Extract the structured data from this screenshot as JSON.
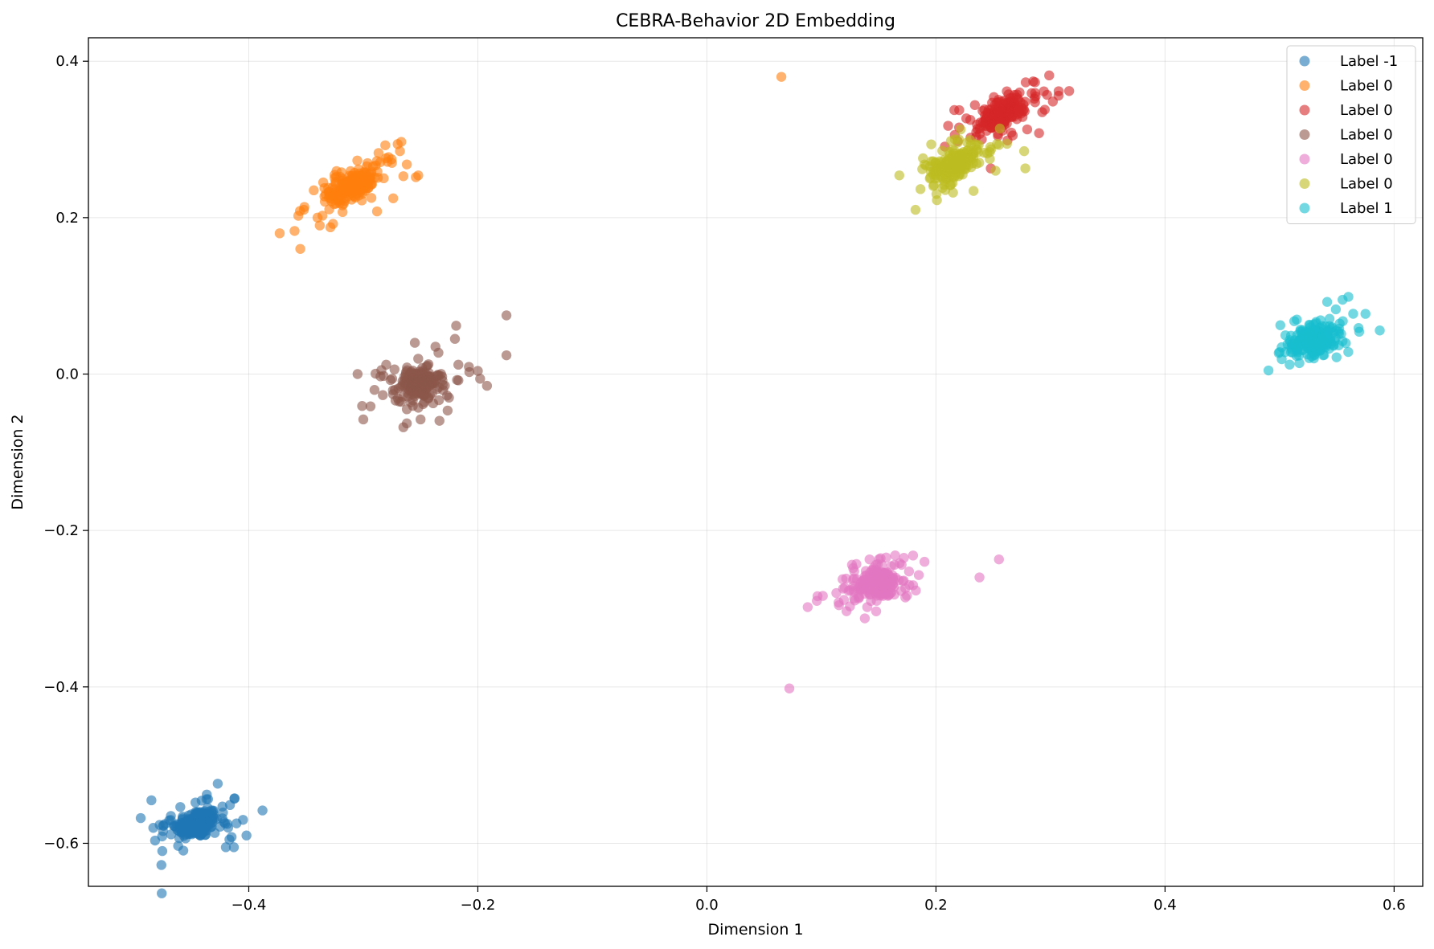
{
  "chart_data": {
    "type": "scatter",
    "title": "CEBRA-Behavior 2D Embedding",
    "xlabel": "Dimension 1",
    "ylabel": "Dimension 2",
    "xlim": [
      -0.54,
      0.625
    ],
    "ylim": [
      -0.655,
      0.43
    ],
    "xticks": [
      -0.4,
      -0.2,
      0.0,
      0.2,
      0.4,
      0.6
    ],
    "xtick_labels": [
      "−0.4",
      "−0.2",
      "0.0",
      "0.2",
      "0.4",
      "0.6"
    ],
    "yticks": [
      -0.6,
      -0.4,
      -0.2,
      0.0,
      0.2,
      0.4
    ],
    "ytick_labels": [
      "−0.6",
      "−0.4",
      "−0.2",
      "0.0",
      "0.2",
      "0.4"
    ],
    "grid": true,
    "legend_position": "top-right",
    "series": [
      {
        "name": "Label -1",
        "color": "#1f77b4",
        "center": [
          -0.445,
          -0.575
        ],
        "outliers": [
          [
            -0.485,
            -0.545
          ],
          [
            -0.468,
            -0.565
          ],
          [
            -0.388,
            -0.558
          ],
          [
            -0.405,
            -0.57
          ],
          [
            -0.402,
            -0.59
          ],
          [
            -0.42,
            -0.605
          ],
          [
            -0.413,
            -0.605
          ],
          [
            -0.415,
            -0.592
          ],
          [
            -0.423,
            -0.553
          ],
          [
            -0.418,
            -0.58
          ],
          [
            -0.465,
            -0.578
          ]
        ]
      },
      {
        "name": "Label 0",
        "color": "#ff7f0e",
        "center": [
          -0.31,
          0.24
        ],
        "outliers": [
          [
            -0.373,
            0.18
          ],
          [
            -0.36,
            0.183
          ],
          [
            -0.355,
            0.16
          ],
          [
            -0.34,
            0.2
          ],
          [
            -0.338,
            0.19
          ],
          [
            -0.27,
            0.294
          ],
          [
            -0.268,
            0.285
          ],
          [
            -0.262,
            0.268
          ],
          [
            -0.252,
            0.254
          ],
          [
            -0.288,
            0.208
          ],
          [
            -0.265,
            0.253
          ],
          [
            -0.275,
            0.27
          ],
          [
            -0.335,
            0.245
          ],
          [
            -0.32,
            0.252
          ]
        ]
      },
      {
        "name": "Label 0",
        "color": "#d62728",
        "center": [
          0.258,
          0.333
        ],
        "outliers": [
          [
            0.307,
            0.356
          ],
          [
            0.297,
            0.357
          ],
          [
            0.295,
            0.338
          ],
          [
            0.29,
            0.308
          ],
          [
            0.273,
            0.36
          ],
          [
            0.24,
            0.3
          ],
          [
            0.23,
            0.325
          ],
          [
            0.287,
            0.355
          ],
          [
            0.267,
            0.305
          ],
          [
            0.248,
            0.315
          ]
        ]
      },
      {
        "name": "Label 0",
        "color": "#8c564b",
        "center": [
          -0.252,
          -0.012
        ],
        "outliers": [
          [
            -0.175,
            0.075
          ],
          [
            -0.175,
            0.024
          ],
          [
            -0.3,
            -0.058
          ],
          [
            -0.305,
            0.0
          ],
          [
            -0.265,
            -0.068
          ],
          [
            -0.262,
            -0.063
          ],
          [
            -0.25,
            -0.058
          ],
          [
            -0.255,
            0.04
          ],
          [
            -0.237,
            0.035
          ],
          [
            -0.22,
            0.045
          ],
          [
            -0.192,
            -0.015
          ],
          [
            -0.2,
            0.004
          ],
          [
            -0.28,
            0.012
          ],
          [
            -0.285,
            -0.003
          ],
          [
            -0.262,
            -0.045
          ],
          [
            -0.217,
            0.012
          ],
          [
            -0.198,
            -0.006
          ]
        ]
      },
      {
        "name": "Label 0",
        "color": "#e377c2",
        "center": [
          0.15,
          -0.268
        ],
        "outliers": [
          [
            0.072,
            -0.402
          ],
          [
            0.088,
            -0.298
          ],
          [
            0.096,
            -0.29
          ],
          [
            0.115,
            -0.292
          ],
          [
            0.113,
            -0.28
          ],
          [
            0.255,
            -0.237
          ],
          [
            0.238,
            -0.26
          ],
          [
            0.19,
            -0.24
          ],
          [
            0.18,
            -0.232
          ],
          [
            0.172,
            -0.235
          ],
          [
            0.142,
            -0.237
          ],
          [
            0.14,
            -0.298
          ],
          [
            0.185,
            -0.257
          ],
          [
            0.18,
            -0.27
          ],
          [
            0.128,
            -0.275
          ]
        ]
      },
      {
        "name": "Label 0",
        "color": "#bcbd22",
        "center": [
          0.217,
          0.27
        ],
        "outliers": [
          [
            0.168,
            0.254
          ],
          [
            0.188,
            0.262
          ],
          [
            0.19,
            0.268
          ],
          [
            0.278,
            0.263
          ],
          [
            0.277,
            0.285
          ],
          [
            0.252,
            0.26
          ],
          [
            0.255,
            0.293
          ],
          [
            0.242,
            0.283
          ],
          [
            0.213,
            0.298
          ],
          [
            0.22,
            0.3
          ],
          [
            0.207,
            0.242
          ],
          [
            0.213,
            0.242
          ],
          [
            0.247,
            0.275
          ],
          [
            0.196,
            0.272
          ]
        ]
      },
      {
        "name": "Label 1",
        "color": "#17becf",
        "center": [
          0.53,
          0.043
        ],
        "outliers": [
          [
            0.555,
            0.095
          ],
          [
            0.575,
            0.077
          ],
          [
            0.51,
            0.028
          ],
          [
            0.51,
            0.049
          ],
          [
            0.555,
            0.042
          ],
          [
            0.552,
            0.058
          ],
          [
            0.53,
            0.02
          ],
          [
            0.538,
            0.024
          ],
          [
            0.516,
            0.035
          ],
          [
            0.548,
            0.042
          ]
        ]
      }
    ]
  }
}
